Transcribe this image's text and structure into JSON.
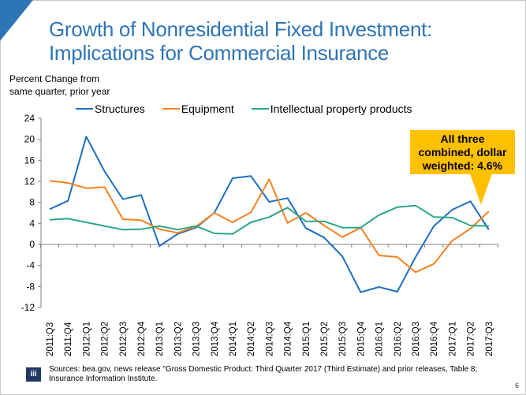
{
  "slide": {
    "title_line1": "Growth of Nonresidential Fixed Investment:",
    "title_line2": "Implications for Commercial Insurance",
    "callout_text_line1": "All three",
    "callout_text_line2": "combined, dollar",
    "callout_text_line3": "weighted: 4.6%",
    "footer_logo": "iii",
    "footer_line1": "Sources: bea.gov, news release \"Gross Domestic Product: Third Quarter 2017 (Third Estimate) and prior releases, Table 8;",
    "footer_line2": "Insurance Information Institute.",
    "page_number": "6",
    "colors": {
      "accent": "#2e75b6",
      "callout": "#ffc000",
      "logo_bg": "#1f3864"
    }
  },
  "chart_data": {
    "type": "line",
    "title": "Growth of Nonresidential Fixed Investment: Implications for Commercial Insurance",
    "ylabel_line1": "Percent Change from",
    "ylabel_line2": "same quarter, prior year",
    "xlabel": "",
    "ylim": [
      -12,
      24
    ],
    "yticks": [
      24,
      20,
      16,
      12,
      8,
      4,
      0,
      -4,
      -8,
      -12
    ],
    "legend_position": "top",
    "grid": false,
    "x": [
      "2011:Q3",
      "2011:Q4",
      "2012:Q1",
      "2012:Q2",
      "2012:Q3",
      "2012:Q4",
      "2013:Q1",
      "2013:Q2",
      "2013:Q3",
      "2013:Q4",
      "2014:Q1",
      "2014:Q2",
      "2014:Q3",
      "2014:Q4",
      "2015:Q1",
      "2015:Q2",
      "2015:Q3",
      "2015:Q4",
      "2016:Q1",
      "2016:Q2",
      "2016:Q3",
      "2016:Q4",
      "2017:Q1",
      "2017:Q2",
      "2017:Q3"
    ],
    "series": [
      {
        "name": "Structures",
        "color": "#1f6fbf",
        "values": [
          6.7,
          8.3,
          20.5,
          13.9,
          8.6,
          9.4,
          -0.3,
          2.0,
          3.2,
          6.0,
          12.6,
          13.0,
          8.1,
          8.8,
          3.1,
          1.3,
          -2.3,
          -9.1,
          -8.1,
          -9.0,
          -2.4,
          3.5,
          6.6,
          8.2,
          2.8
        ]
      },
      {
        "name": "Equipment",
        "color": "#f58220",
        "values": [
          12.1,
          11.7,
          10.7,
          10.9,
          4.8,
          4.6,
          2.9,
          2.2,
          3.4,
          6.0,
          4.2,
          6.1,
          12.4,
          4.1,
          6.0,
          3.6,
          1.4,
          3.2,
          -2.1,
          -2.4,
          -5.3,
          -3.7,
          0.7,
          3.0,
          6.3
        ]
      },
      {
        "name": "Intellectual property products",
        "color": "#2aa58a",
        "values": [
          4.7,
          4.9,
          4.2,
          3.5,
          2.8,
          2.9,
          3.5,
          2.8,
          3.5,
          2.1,
          2.0,
          4.2,
          5.2,
          7.0,
          4.4,
          4.4,
          3.2,
          3.2,
          5.6,
          7.1,
          7.4,
          5.2,
          5.1,
          3.6,
          3.5
        ]
      }
    ],
    "annotation": "All three combined, dollar weighted: 4.6%"
  }
}
